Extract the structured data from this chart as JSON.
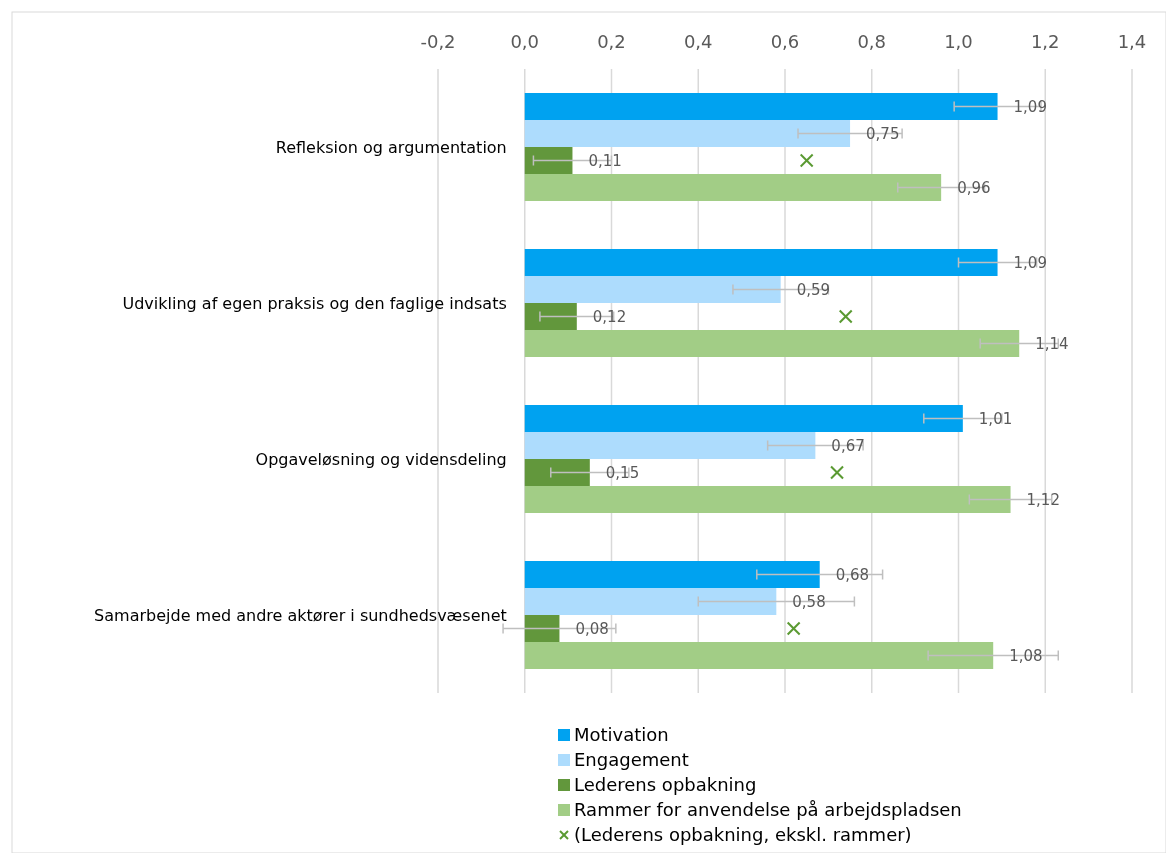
{
  "chart_data": {
    "type": "bar",
    "orientation": "horizontal",
    "categories": [
      "Refleksion og argumentation",
      "Udvikling af egen praksis og den faglige indsats",
      "Opgaveløsning og vidensdeling",
      "Samarbejde med andre aktører i sundhedsvæsenet"
    ],
    "series": [
      {
        "name": "Motivation",
        "color": "#00a2f0",
        "values": [
          1.09,
          1.09,
          1.01,
          0.68
        ],
        "value_labels": [
          "1,09",
          "1,09",
          "1,01",
          "0,68"
        ],
        "errors": [
          0.1,
          0.09,
          0.09,
          0.145
        ]
      },
      {
        "name": "Engagement",
        "color": "#addcfd",
        "values": [
          0.75,
          0.59,
          0.67,
          0.58
        ],
        "value_labels": [
          "0,75",
          "0,59",
          "0,67",
          "0,58"
        ],
        "errors": [
          0.12,
          0.11,
          0.11,
          0.18
        ]
      },
      {
        "name": "Lederens opbakning",
        "color": "#62973c",
        "values": [
          0.11,
          0.12,
          0.15,
          0.08
        ],
        "value_labels": [
          "0,11",
          "0,12",
          "0,15",
          "0,08"
        ],
        "errors": [
          0.09,
          0.085,
          0.09,
          0.13
        ]
      },
      {
        "name": "Rammer for anvendelse på arbejdspladsen",
        "color": "#a2cd86",
        "values": [
          0.96,
          1.14,
          1.12,
          1.08
        ],
        "value_labels": [
          "0,96",
          "1,14",
          "1,12",
          "1,08"
        ],
        "errors": [
          0.1,
          0.09,
          0.095,
          0.15
        ]
      },
      {
        "name": "(Lederens opbakning, ekskl. rammer)",
        "type": "scatter",
        "color": "#5a9a32",
        "values": [
          0.65,
          0.74,
          0.72,
          0.62
        ]
      }
    ],
    "marker": "cross",
    "xlim": [
      -0.2,
      1.4
    ],
    "xticks": [
      {
        "value": -0.2,
        "label": "-0,2"
      },
      {
        "value": 0,
        "label": "0,0"
      },
      {
        "value": 0.2,
        "label": "0,2"
      },
      {
        "value": 0.4,
        "label": "0,4"
      },
      {
        "value": 0.6,
        "label": "0,6"
      },
      {
        "value": 0.8,
        "label": "0,8"
      },
      {
        "value": 1,
        "label": "1,0"
      },
      {
        "value": 1.2,
        "label": "1,2"
      },
      {
        "value": 1.4,
        "label": "1,4"
      }
    ],
    "grid": "x",
    "legend": "bottom"
  }
}
